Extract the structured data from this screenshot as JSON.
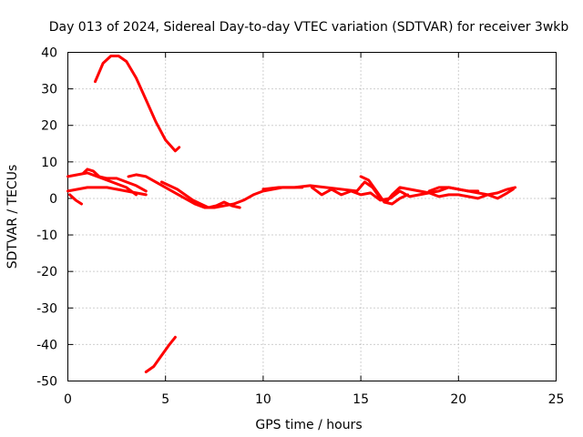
{
  "chart_data": {
    "type": "line",
    "title": "Day 013 of 2024, Sidereal Day-to-day VTEC variation (SDTVAR) for receiver 3wkb",
    "xlabel": "GPS time / hours",
    "ylabel": "SDTVAR / TECUs",
    "xlim": [
      0,
      25
    ],
    "ylim": [
      -50,
      40
    ],
    "xticks": [
      0,
      5,
      10,
      15,
      20,
      25
    ],
    "yticks": [
      -50,
      -40,
      -30,
      -20,
      -10,
      0,
      10,
      20,
      30,
      40
    ],
    "grid": true,
    "series_color": "#ff0000",
    "series": [
      {
        "name": "arc-high",
        "x": [
          1.4,
          1.8,
          2.2,
          2.6,
          3.0,
          3.5,
          4.0,
          4.5,
          5.0,
          5.5,
          5.7
        ],
        "y": [
          32,
          37,
          39,
          39,
          37.5,
          33,
          27,
          21,
          16,
          13,
          14
        ]
      },
      {
        "name": "arc-low",
        "x": [
          4.0,
          4.4,
          4.8,
          5.2,
          5.5
        ],
        "y": [
          -47.5,
          -46,
          -43,
          -40,
          -38
        ]
      },
      {
        "name": "arc-a",
        "x": [
          0.0,
          0.5,
          1.0,
          1.5,
          2.0,
          2.5,
          3.0,
          3.5,
          4.0
        ],
        "y": [
          2,
          2.5,
          3,
          3,
          3,
          2.5,
          2,
          1.5,
          1
        ]
      },
      {
        "name": "arc-b",
        "x": [
          0.0,
          0.5,
          1.0,
          1.5,
          2.0,
          2.5,
          3.0,
          3.5
        ],
        "y": [
          6,
          6.5,
          7,
          6,
          5,
          4,
          3,
          1
        ]
      },
      {
        "name": "arc-c",
        "x": [
          0.1,
          0.4,
          0.7
        ],
        "y": [
          1,
          -0.5,
          -1.5
        ]
      },
      {
        "name": "arc-d",
        "x": [
          0.8,
          1.0,
          1.3,
          1.6,
          2.0,
          2.5,
          3.0,
          3.5,
          4.0
        ],
        "y": [
          7,
          8,
          7.5,
          6,
          5.5,
          5.5,
          4.5,
          3.5,
          2
        ]
      },
      {
        "name": "arc-e",
        "x": [
          3.1,
          3.5,
          4.0,
          4.5,
          5.0,
          5.5,
          6.0,
          6.5,
          7.0,
          7.5,
          8.0,
          8.5,
          9.0,
          9.5,
          10.0,
          10.5,
          11.0,
          11.5,
          12.0
        ],
        "y": [
          6,
          6.5,
          6,
          4.5,
          3,
          1.5,
          0,
          -1.5,
          -2.5,
          -2.5,
          -2,
          -1.5,
          -0.5,
          1,
          2,
          2.5,
          3,
          3,
          3
        ]
      },
      {
        "name": "arc-f",
        "x": [
          4.8,
          5.2,
          5.6,
          6.0,
          6.4,
          6.8,
          7.2,
          7.6,
          8.0,
          8.4,
          8.8
        ],
        "y": [
          4.5,
          3.5,
          2.5,
          1,
          -0.5,
          -1.5,
          -2.5,
          -2,
          -1,
          -2,
          -2.5
        ]
      },
      {
        "name": "arc-g",
        "x": [
          10.0,
          10.8,
          11.6,
          12.4,
          13.2,
          14.0,
          14.8,
          15.2,
          15.6,
          16.0,
          16.3,
          16.6,
          17.0,
          17.5,
          18.0,
          18.5,
          19.0,
          19.5,
          20.0,
          20.5,
          21.0,
          21.5,
          22.0,
          22.5,
          22.9
        ],
        "y": [
          2.5,
          3,
          3,
          3.5,
          3,
          2.5,
          2,
          4.5,
          3,
          0,
          -1,
          1,
          3,
          2.5,
          2,
          1.5,
          2,
          3,
          2.5,
          2,
          1.5,
          1,
          1.5,
          2.5,
          3
        ]
      },
      {
        "name": "arc-h",
        "x": [
          12.5,
          13.0,
          13.5,
          14.0,
          14.5,
          15.0,
          15.5,
          16.0,
          16.5,
          17.0,
          17.5,
          18.0,
          18.5,
          19.0,
          19.5,
          20.0,
          20.5,
          21.0,
          21.5,
          22.0,
          22.5,
          22.8
        ],
        "y": [
          3,
          1,
          2.5,
          1,
          2,
          1,
          1.5,
          -0.5,
          0,
          2,
          0.5,
          1,
          1.5,
          0.5,
          1,
          1,
          0.5,
          0,
          1,
          0,
          1.5,
          2.5
        ]
      },
      {
        "name": "arc-i",
        "x": [
          15.0,
          15.4,
          15.8,
          16.2,
          16.6,
          17.0,
          17.4
        ],
        "y": [
          6,
          5,
          2,
          -1,
          -1.5,
          0,
          1
        ]
      },
      {
        "name": "arc-j",
        "x": [
          18.5,
          19.0,
          19.5,
          20.0,
          20.5,
          21.0
        ],
        "y": [
          2,
          3,
          3,
          2.5,
          2,
          2
        ]
      }
    ]
  }
}
